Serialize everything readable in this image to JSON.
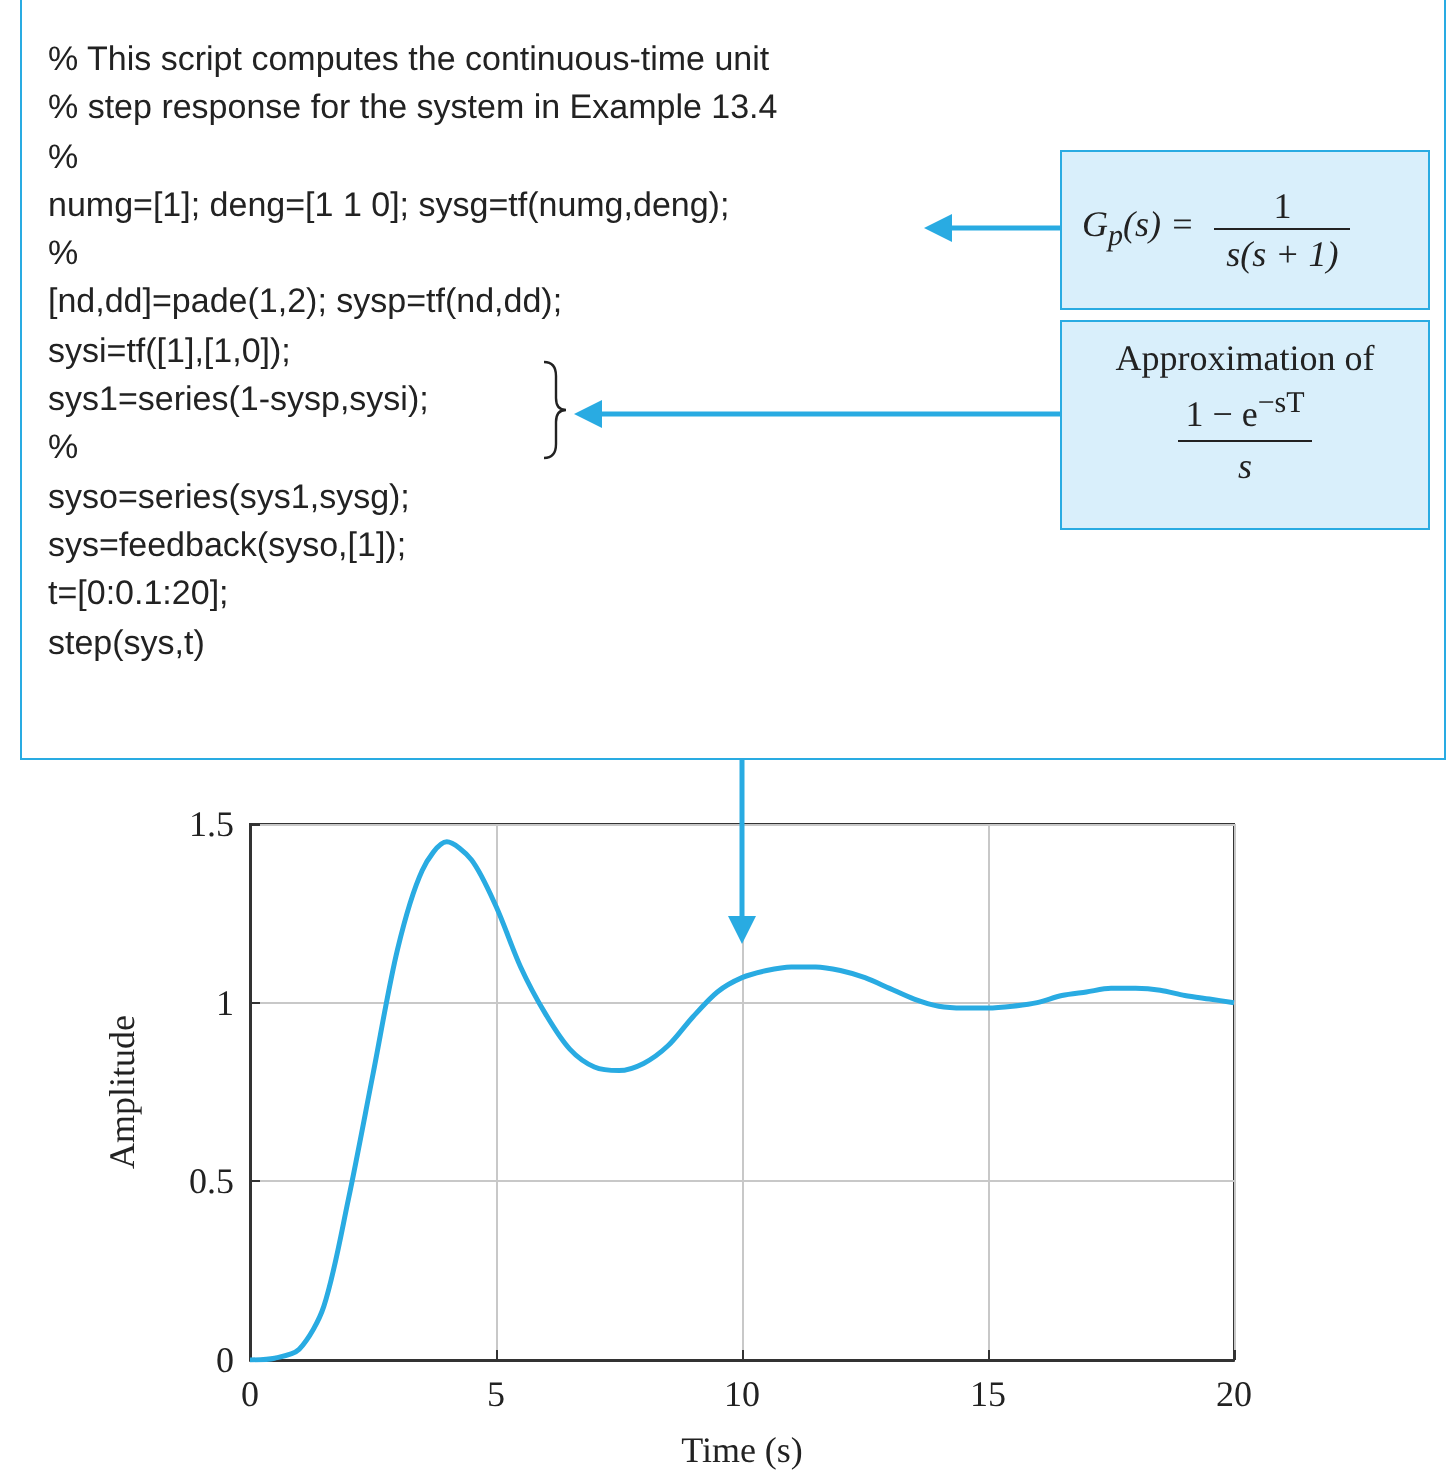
{
  "chart_data": {
    "type": "line",
    "xlabel": "Time (s)",
    "ylabel": "Amplitude",
    "x": [
      0,
      0.5,
      1,
      1.5,
      2,
      2.5,
      3,
      3.5,
      4,
      4.5,
      5,
      5.5,
      6,
      6.5,
      7,
      7.5,
      8,
      8.5,
      9,
      9.5,
      10,
      10.5,
      11,
      11.5,
      12,
      12.5,
      13,
      13.5,
      14,
      14.5,
      15,
      15.5,
      16,
      16.5,
      17,
      17.5,
      18,
      18.5,
      19,
      19.5,
      20
    ],
    "series": [
      {
        "color": "#29abe2",
        "values": [
          0,
          0.005,
          0.03,
          0.15,
          0.45,
          0.8,
          1.15,
          1.37,
          1.45,
          1.4,
          1.27,
          1.1,
          0.97,
          0.87,
          0.82,
          0.81,
          0.83,
          0.88,
          0.96,
          1.03,
          1.07,
          1.09,
          1.1,
          1.1,
          1.09,
          1.07,
          1.04,
          1.01,
          0.99,
          0.985,
          0.985,
          0.99,
          1,
          1.02,
          1.03,
          1.04,
          1.04,
          1.035,
          1.02,
          1.01,
          1
        ]
      }
    ],
    "xlim": [
      0,
      20
    ],
    "xticks": [
      0,
      5,
      10,
      15,
      20
    ],
    "ylim": [
      0,
      1.5
    ],
    "yticks": [
      0,
      0.5,
      1,
      1.5
    ],
    "grid": true,
    "marker": "none",
    "line_style": "solid",
    "annotations": [
      "% This script computes the continuous-time unit",
      "% step response for the system in Example 13.4",
      "%",
      "numg=[1]; deng=[1 1 0]; sysg=tf(numg,deng);",
      "%",
      "[nd,dd]=pade(1,2); sysp=tf(nd,dd);",
      "sysi=tf([1],[1,0]);",
      "sys1=series(1-sysp,sysi);",
      "%",
      "syso=series(sys1,sysg);",
      "sys=feedback(syso,[1]);",
      "t=[0:0.1:20];",
      "step(sys,t)",
      "G$_{p}$(s) =",
      "1",
      "s(s + 1)",
      "Approximation of",
      "1 − e$^{−sT}$",
      "s"
    ]
  }
}
